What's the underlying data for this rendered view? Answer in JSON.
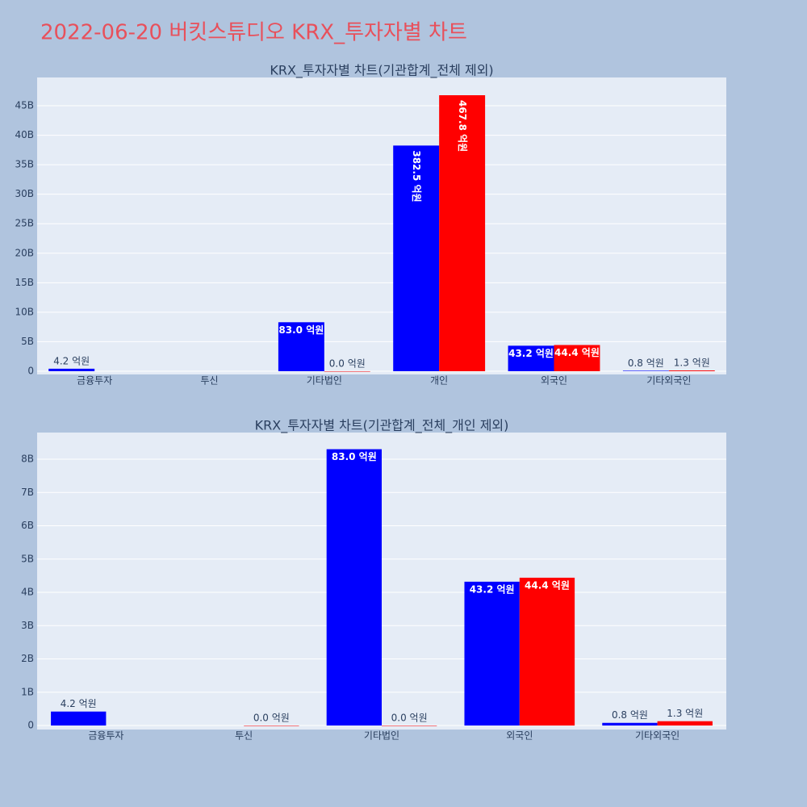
{
  "title": "2022-06-20 버킷스튜디오 KRX_투자자별 차트",
  "chart_data": [
    {
      "type": "bar",
      "title": "KRX_투자자별 차트(기관합계_전체 제외)",
      "categories": [
        "금융투자",
        "투신",
        "기타법인",
        "개인",
        "외국인",
        "기타외국인"
      ],
      "series": [
        {
          "color": "#0000ff",
          "values": [
            420000000,
            null,
            8300000000,
            38250000000,
            4320000000,
            80000000
          ],
          "value_labels": [
            "4.2 억원",
            null,
            "83.0 억원",
            "382.5 억원",
            "43.2 억원",
            "0.8 억원"
          ]
        },
        {
          "color": "#ff0000",
          "values": [
            null,
            null,
            0,
            46780000000,
            4440000000,
            130000000
          ],
          "value_labels": [
            null,
            null,
            "0.0 억원",
            "467.8 억원",
            "44.4 억원",
            "1.3 억원"
          ]
        }
      ],
      "ylim": [
        -550000000,
        49790000000
      ],
      "yticks": [
        0,
        {
          "value": 5000000000,
          "label": "5B"
        },
        {
          "value": 10000000000,
          "label": "10B"
        },
        {
          "value": 15000000000,
          "label": "15B"
        },
        {
          "value": 20000000000,
          "label": "20B"
        },
        {
          "value": 25000000000,
          "label": "25B"
        },
        {
          "value": 30000000000,
          "label": "30B"
        },
        {
          "value": 35000000000,
          "label": "35B"
        },
        {
          "value": 40000000000,
          "label": "40B"
        },
        {
          "value": 45000000000,
          "label": "45B"
        }
      ],
      "grid": true
    },
    {
      "type": "bar",
      "title": "KRX_투자자별 차트(기관합계_전체_개인 제외)",
      "categories": [
        "금융투자",
        "투신",
        "기타법인",
        "외국인",
        "기타외국인"
      ],
      "series": [
        {
          "color": "#0000ff",
          "values": [
            420000000,
            null,
            8300000000,
            4320000000,
            80000000
          ],
          "value_labels": [
            "4.2 억원",
            null,
            "83.0 억원",
            "43.2 억원",
            "0.8 억원"
          ]
        },
        {
          "color": "#ff0000",
          "values": [
            null,
            0,
            0,
            4440000000,
            130000000
          ],
          "value_labels": [
            null,
            "0.0 억원",
            "0.0 억원",
            "44.4 억원",
            "1.3 억원"
          ]
        }
      ],
      "ylim": [
        -120000000,
        8800000000
      ],
      "yticks": [
        0,
        {
          "value": 1000000000,
          "label": "1B"
        },
        {
          "value": 2000000000,
          "label": "2B"
        },
        {
          "value": 3000000000,
          "label": "3B"
        },
        {
          "value": 4000000000,
          "label": "4B"
        },
        {
          "value": 5000000000,
          "label": "5B"
        },
        {
          "value": 6000000000,
          "label": "6B"
        },
        {
          "value": 7000000000,
          "label": "7B"
        },
        {
          "value": 8000000000,
          "label": "8B"
        }
      ],
      "grid": true
    }
  ]
}
